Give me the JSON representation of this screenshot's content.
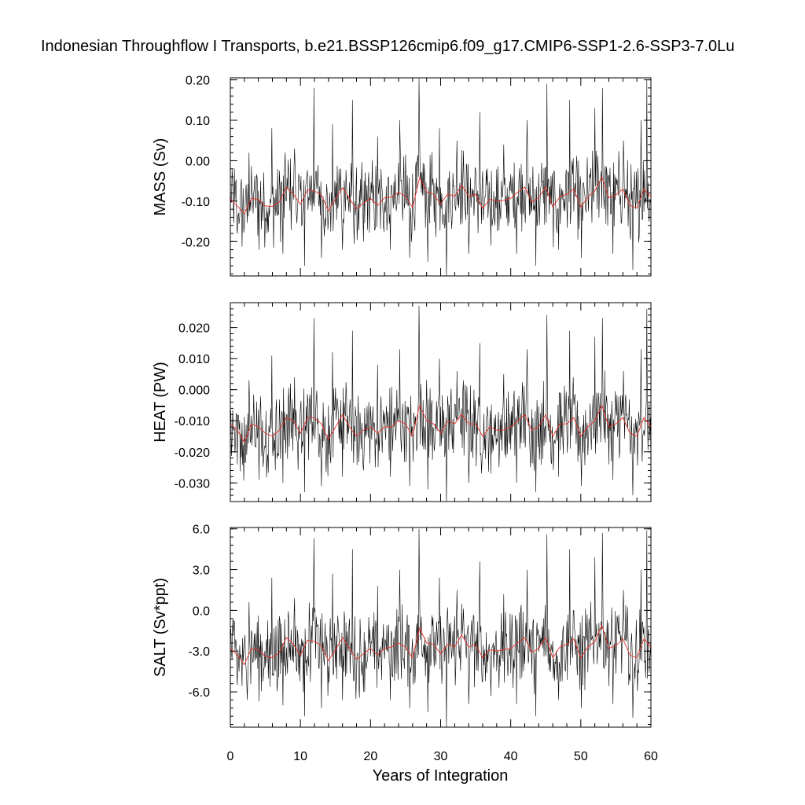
{
  "chart_data": {
    "type": "line",
    "title": "Indonesian Throughflow I Transports, b.e21.BSSP126cmip6.f09_g17.CMIP6-SSP1-2.6-SSP3-7.0Lu",
    "xlabel": "Years of Integration",
    "x_range": [
      0,
      60
    ],
    "x_ticks": [
      "0",
      "10",
      "20",
      "30",
      "40",
      "50",
      "60"
    ],
    "line_colors": {
      "monthly": "#000000",
      "annual": "#e8312a"
    },
    "panels": [
      {
        "ylabel": "MASS (Sv)",
        "ylim": [
          -0.285,
          0.205
        ],
        "y_ticks": [
          {
            "value": 0.2,
            "label": "0.20"
          },
          {
            "value": 0.1,
            "label": "0.10"
          },
          {
            "value": 0.0,
            "label": "0.00"
          },
          {
            "value": -0.1,
            "label": "-0.10"
          },
          {
            "value": -0.2,
            "label": "-0.20"
          }
        ],
        "annual_mean": [
          -0.095,
          -0.112,
          -0.131,
          -0.093,
          -0.096,
          -0.112,
          -0.113,
          -0.102,
          -0.066,
          -0.083,
          -0.108,
          -0.072,
          -0.075,
          -0.085,
          -0.124,
          -0.095,
          -0.067,
          -0.094,
          -0.119,
          -0.105,
          -0.093,
          -0.111,
          -0.092,
          -0.09,
          -0.078,
          -0.088,
          -0.116,
          -0.042,
          -0.077,
          -0.083,
          -0.107,
          -0.082,
          -0.088,
          -0.06,
          -0.088,
          -0.083,
          -0.118,
          -0.095,
          -0.1,
          -0.098,
          -0.093,
          -0.078,
          -0.065,
          -0.102,
          -0.091,
          -0.065,
          -0.115,
          -0.089,
          -0.083,
          -0.07,
          -0.115,
          -0.09,
          -0.075,
          -0.04,
          -0.092,
          -0.085,
          -0.07,
          -0.11,
          -0.117,
          -0.07,
          -0.09
        ],
        "peaks": [
          {
            "year": 1.0,
            "value": -0.18
          },
          {
            "year": 2.7,
            "value": 0.02
          },
          {
            "year": 4.1,
            "value": -0.22
          },
          {
            "year": 5.9,
            "value": 0.08
          },
          {
            "year": 7.5,
            "value": -0.23
          },
          {
            "year": 9.2,
            "value": 0.03
          },
          {
            "year": 10.6,
            "value": -0.26
          },
          {
            "year": 11.9,
            "value": 0.18
          },
          {
            "year": 13.0,
            "value": -0.24
          },
          {
            "year": 14.6,
            "value": 0.09
          },
          {
            "year": 16.0,
            "value": -0.22
          },
          {
            "year": 17.4,
            "value": 0.15
          },
          {
            "year": 19.0,
            "value": -0.2
          },
          {
            "year": 21.0,
            "value": 0.06
          },
          {
            "year": 22.8,
            "value": -0.22
          },
          {
            "year": 24.2,
            "value": 0.1
          },
          {
            "year": 25.6,
            "value": -0.24
          },
          {
            "year": 26.9,
            "value": 0.21
          },
          {
            "year": 28.2,
            "value": -0.25
          },
          {
            "year": 29.8,
            "value": 0.08
          },
          {
            "year": 30.8,
            "value": -0.285
          },
          {
            "year": 32.3,
            "value": 0.05
          },
          {
            "year": 34.0,
            "value": -0.23
          },
          {
            "year": 35.6,
            "value": 0.12
          },
          {
            "year": 37.2,
            "value": -0.21
          },
          {
            "year": 39.0,
            "value": 0.04
          },
          {
            "year": 40.8,
            "value": -0.23
          },
          {
            "year": 42.3,
            "value": 0.1
          },
          {
            "year": 43.6,
            "value": -0.26
          },
          {
            "year": 45.2,
            "value": 0.19
          },
          {
            "year": 46.8,
            "value": -0.22
          },
          {
            "year": 48.4,
            "value": 0.15
          },
          {
            "year": 50.1,
            "value": -0.24
          },
          {
            "year": 52.0,
            "value": 0.13
          },
          {
            "year": 53.1,
            "value": 0.18
          },
          {
            "year": 54.6,
            "value": -0.23
          },
          {
            "year": 56.1,
            "value": 0.05
          },
          {
            "year": 57.4,
            "value": -0.27
          },
          {
            "year": 58.6,
            "value": 0.1
          },
          {
            "year": 59.4,
            "value": 0.2
          }
        ]
      },
      {
        "ylabel": "HEAT (PW)",
        "ylim": [
          -0.036,
          0.028
        ],
        "y_ticks": [
          {
            "value": 0.02,
            "label": "0.020"
          },
          {
            "value": 0.01,
            "label": "0.010"
          },
          {
            "value": 0.0,
            "label": "0.000"
          },
          {
            "value": -0.01,
            "label": "-0.010"
          },
          {
            "value": -0.02,
            "label": "-0.020"
          },
          {
            "value": -0.03,
            "label": "-0.030"
          }
        ],
        "annual_mean": [
          -0.011,
          -0.013,
          -0.017,
          -0.011,
          -0.012,
          -0.014,
          -0.015,
          -0.013,
          -0.009,
          -0.01,
          -0.014,
          -0.009,
          -0.009,
          -0.011,
          -0.016,
          -0.012,
          -0.008,
          -0.012,
          -0.015,
          -0.013,
          -0.012,
          -0.014,
          -0.012,
          -0.012,
          -0.01,
          -0.011,
          -0.015,
          -0.005,
          -0.01,
          -0.011,
          -0.014,
          -0.01,
          -0.011,
          -0.008,
          -0.011,
          -0.011,
          -0.015,
          -0.012,
          -0.013,
          -0.013,
          -0.012,
          -0.01,
          -0.008,
          -0.013,
          -0.012,
          -0.008,
          -0.015,
          -0.011,
          -0.011,
          -0.009,
          -0.015,
          -0.012,
          -0.01,
          -0.005,
          -0.012,
          -0.011,
          -0.009,
          -0.014,
          -0.015,
          -0.009,
          -0.012
        ],
        "peaks": [
          {
            "year": 1.0,
            "value": -0.024
          },
          {
            "year": 2.7,
            "value": 0.003
          },
          {
            "year": 4.1,
            "value": -0.029
          },
          {
            "year": 5.9,
            "value": 0.011
          },
          {
            "year": 7.5,
            "value": -0.03
          },
          {
            "year": 9.2,
            "value": 0.004
          },
          {
            "year": 10.6,
            "value": -0.033
          },
          {
            "year": 11.9,
            "value": 0.023
          },
          {
            "year": 13.0,
            "value": -0.031
          },
          {
            "year": 14.6,
            "value": 0.012
          },
          {
            "year": 16.0,
            "value": -0.028
          },
          {
            "year": 17.4,
            "value": 0.019
          },
          {
            "year": 19.0,
            "value": -0.026
          },
          {
            "year": 21.0,
            "value": 0.008
          },
          {
            "year": 22.8,
            "value": -0.028
          },
          {
            "year": 24.2,
            "value": 0.013
          },
          {
            "year": 25.6,
            "value": -0.031
          },
          {
            "year": 26.9,
            "value": 0.027
          },
          {
            "year": 28.2,
            "value": -0.032
          },
          {
            "year": 29.8,
            "value": 0.01
          },
          {
            "year": 30.8,
            "value": -0.036
          },
          {
            "year": 32.3,
            "value": 0.006
          },
          {
            "year": 34.0,
            "value": -0.03
          },
          {
            "year": 35.6,
            "value": 0.015
          },
          {
            "year": 37.2,
            "value": -0.027
          },
          {
            "year": 39.0,
            "value": 0.005
          },
          {
            "year": 40.8,
            "value": -0.03
          },
          {
            "year": 42.3,
            "value": 0.013
          },
          {
            "year": 43.6,
            "value": -0.033
          },
          {
            "year": 45.2,
            "value": 0.024
          },
          {
            "year": 46.8,
            "value": -0.028
          },
          {
            "year": 48.4,
            "value": 0.019
          },
          {
            "year": 50.1,
            "value": -0.031
          },
          {
            "year": 52.0,
            "value": 0.017
          },
          {
            "year": 53.1,
            "value": 0.023
          },
          {
            "year": 54.6,
            "value": -0.029
          },
          {
            "year": 56.1,
            "value": 0.006
          },
          {
            "year": 57.4,
            "value": -0.034
          },
          {
            "year": 58.6,
            "value": 0.013
          },
          {
            "year": 59.4,
            "value": 0.026
          }
        ]
      },
      {
        "ylabel": "SALT (Sv*ppt)",
        "ylim": [
          -8.6,
          6.1
        ],
        "y_ticks": [
          {
            "value": 6.0,
            "label": "6.0"
          },
          {
            "value": 3.0,
            "label": "3.0"
          },
          {
            "value": 0.0,
            "label": "0.0"
          },
          {
            "value": -3.0,
            "label": "-3.0"
          },
          {
            "value": -6.0,
            "label": "-6.0"
          }
        ],
        "annual_mean": [
          -2.8,
          -3.3,
          -4.0,
          -2.8,
          -2.9,
          -3.4,
          -3.5,
          -3.1,
          -2.0,
          -2.5,
          -3.3,
          -2.2,
          -2.3,
          -2.6,
          -3.7,
          -2.9,
          -2.0,
          -2.8,
          -3.6,
          -3.2,
          -2.8,
          -3.3,
          -2.8,
          -2.7,
          -2.4,
          -2.7,
          -3.5,
          -1.3,
          -2.4,
          -2.5,
          -3.2,
          -2.5,
          -2.7,
          -1.8,
          -2.7,
          -2.5,
          -3.5,
          -2.9,
          -3.0,
          -2.9,
          -2.8,
          -2.4,
          -2.0,
          -3.1,
          -2.8,
          -2.0,
          -3.5,
          -2.7,
          -2.5,
          -2.1,
          -3.5,
          -2.7,
          -2.3,
          -1.1,
          -2.8,
          -2.6,
          -2.1,
          -3.3,
          -3.5,
          -2.1,
          -2.7
        ],
        "peaks": [
          {
            "year": 1.0,
            "value": -5.5
          },
          {
            "year": 2.7,
            "value": 0.6
          },
          {
            "year": 4.1,
            "value": -6.7
          },
          {
            "year": 5.9,
            "value": 2.4
          },
          {
            "year": 7.5,
            "value": -7.0
          },
          {
            "year": 9.2,
            "value": 0.9
          },
          {
            "year": 10.6,
            "value": -7.8
          },
          {
            "year": 11.9,
            "value": 5.3
          },
          {
            "year": 13.0,
            "value": -7.2
          },
          {
            "year": 14.6,
            "value": 2.7
          },
          {
            "year": 16.0,
            "value": -6.6
          },
          {
            "year": 17.4,
            "value": 4.5
          },
          {
            "year": 19.0,
            "value": -6.0
          },
          {
            "year": 21.0,
            "value": 1.8
          },
          {
            "year": 22.8,
            "value": -6.6
          },
          {
            "year": 24.2,
            "value": 3.0
          },
          {
            "year": 25.6,
            "value": -7.2
          },
          {
            "year": 26.9,
            "value": 6.0
          },
          {
            "year": 28.2,
            "value": -7.5
          },
          {
            "year": 29.8,
            "value": 2.4
          },
          {
            "year": 30.8,
            "value": -8.6
          },
          {
            "year": 32.3,
            "value": 1.5
          },
          {
            "year": 34.0,
            "value": -6.9
          },
          {
            "year": 35.6,
            "value": 3.6
          },
          {
            "year": 37.2,
            "value": -6.3
          },
          {
            "year": 39.0,
            "value": 1.2
          },
          {
            "year": 40.8,
            "value": -6.9
          },
          {
            "year": 42.3,
            "value": 3.0
          },
          {
            "year": 43.6,
            "value": -7.8
          },
          {
            "year": 45.2,
            "value": 5.6
          },
          {
            "year": 46.8,
            "value": -6.6
          },
          {
            "year": 48.4,
            "value": 4.5
          },
          {
            "year": 50.1,
            "value": -7.2
          },
          {
            "year": 52.0,
            "value": 3.9
          },
          {
            "year": 53.1,
            "value": 5.7
          },
          {
            "year": 54.6,
            "value": -6.9
          },
          {
            "year": 56.1,
            "value": 1.5
          },
          {
            "year": 57.4,
            "value": -7.9
          },
          {
            "year": 58.6,
            "value": 3.0
          },
          {
            "year": 59.4,
            "value": 5.9
          }
        ]
      }
    ]
  }
}
